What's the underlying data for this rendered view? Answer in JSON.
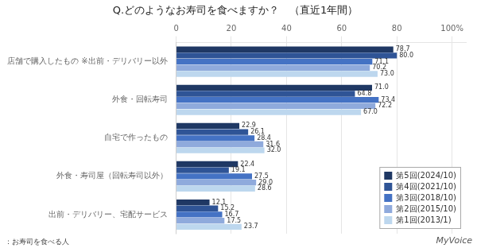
{
  "chart_data": {
    "type": "bar",
    "orientation": "horizontal",
    "title": "Q.どのようなお寿司を食べますか？　（直近1年間）",
    "categories": [
      "店舗で購入したもの ※出前・デリバリー以外",
      "外食・回転寿司",
      "自宅で作ったもの",
      "外食・寿司屋（回転寿司以外）",
      "出前・デリバリー、宅配サービス"
    ],
    "series": [
      {
        "name": "第5回(2024/10)",
        "color": "#1F3864",
        "values": [
          78.7,
          71.0,
          22.9,
          22.4,
          12.1
        ],
        "value_labels": [
          "78.7",
          "71.0",
          "22.9",
          "22.4",
          "12.1"
        ]
      },
      {
        "name": "第4回(2021/10)",
        "color": "#2F5496",
        "values": [
          80.0,
          64.8,
          26.1,
          19.1,
          15.2
        ],
        "value_labels": [
          "80.0",
          "64.8",
          "26.1",
          "19.1",
          "15.2"
        ]
      },
      {
        "name": "第3回(2018/10)",
        "color": "#4472C4",
        "values": [
          71.1,
          73.4,
          28.4,
          27.5,
          16.7
        ],
        "value_labels": [
          "71.1",
          "73.4",
          "28.4",
          "27.5",
          "16.7"
        ]
      },
      {
        "name": "第2回(2015/10)",
        "color": "#8FAADC",
        "values": [
          70.2,
          72.2,
          31.6,
          29.0,
          17.5
        ],
        "value_labels": [
          "70.2",
          "72.2",
          "31.6",
          "29.0",
          "17.5"
        ]
      },
      {
        "name": "第1回(2013/1)",
        "color": "#BDD7EE",
        "values": [
          73.0,
          67.0,
          32.0,
          28.6,
          23.7
        ],
        "value_labels": [
          "73.0",
          "67.0",
          "32.0",
          "28.6",
          "23.7"
        ]
      }
    ],
    "xlim": [
      0,
      105
    ],
    "xticks": [
      0,
      20,
      40,
      60,
      80,
      {
        "value": 100,
        "label": "100%"
      }
    ],
    "grid": true,
    "legend": "lower right",
    "data_labels": true,
    "annotations": [
      "：お寿司を食べる人",
      "MyVoice"
    ]
  }
}
